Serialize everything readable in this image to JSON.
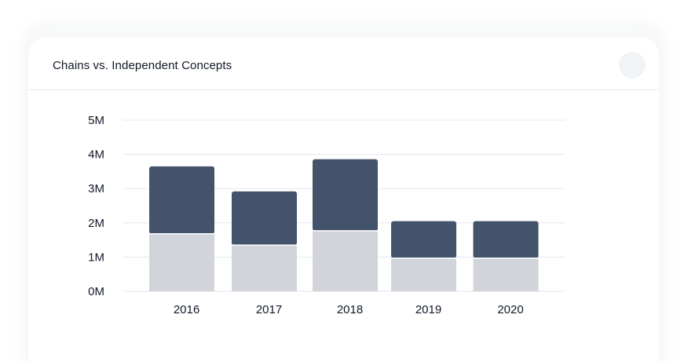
{
  "card": {
    "title": "Chains vs. Independent Concepts"
  },
  "chart_data": {
    "type": "bar",
    "stacked": true,
    "title": "Chains vs. Independent Concepts",
    "categories": [
      "2016",
      "2017",
      "2018",
      "2019",
      "2020"
    ],
    "series": [
      {
        "values": [
          1.68,
          1.35,
          1.77,
          0.97,
          0.97
        ],
        "color": "#d1d5db"
      },
      {
        "values": [
          1.97,
          1.57,
          2.09,
          1.08,
          1.08
        ],
        "color": "#44536c"
      }
    ],
    "yticks": [
      "0M",
      "1M",
      "2M",
      "3M",
      "4M",
      "5M"
    ],
    "ylim": [
      0,
      5
    ],
    "grid": true
  }
}
